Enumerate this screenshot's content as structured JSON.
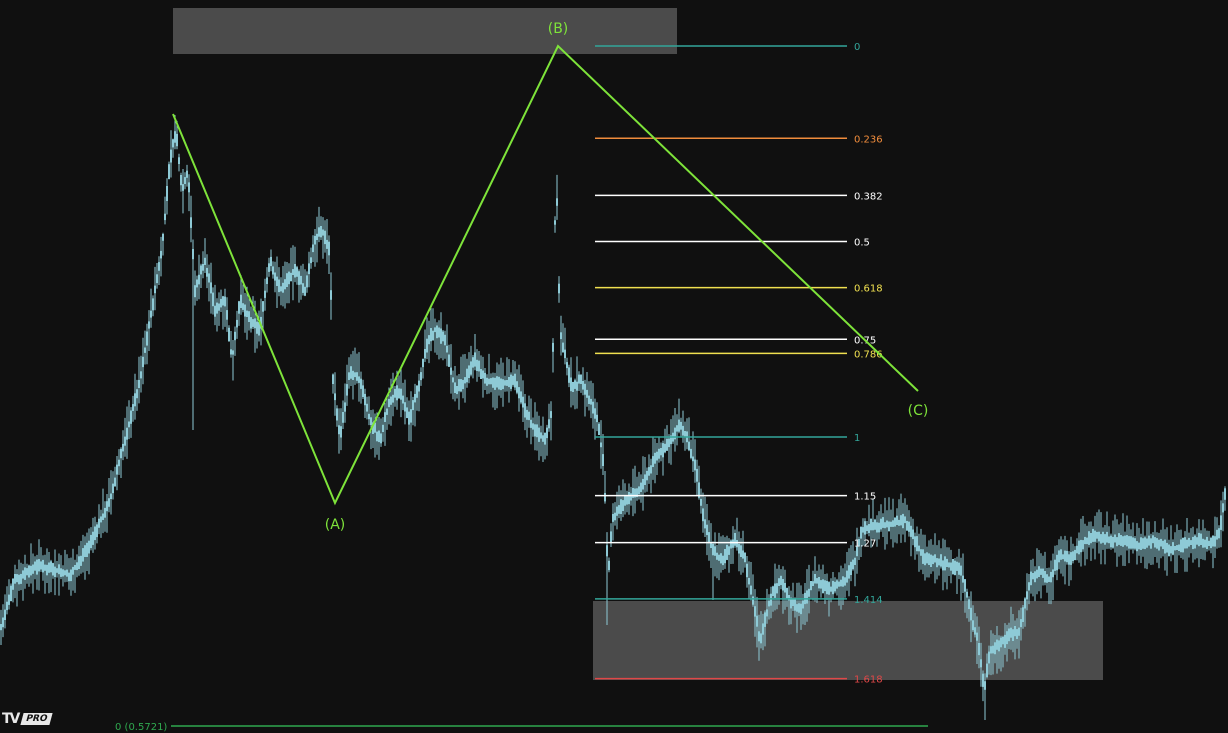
{
  "chart_data": {
    "type": "candlestick",
    "title": "",
    "colors": {
      "background": "#101010",
      "candles": "#8ecad6",
      "wave": "#7ee33a",
      "zone": "#5a5a5a"
    },
    "waves": [
      {
        "label": "(A)",
        "x": 335
      },
      {
        "label": "(B)",
        "x": 558
      },
      {
        "label": "(C)",
        "x": 918
      }
    ],
    "fib_levels": [
      {
        "level": 0,
        "label": "0",
        "color": "#33a69a"
      },
      {
        "level": 0.236,
        "label": "0.236",
        "color": "#f08c3c"
      },
      {
        "level": 0.382,
        "label": "0.382",
        "color": "#ffffff"
      },
      {
        "level": 0.5,
        "label": "0.5",
        "color": "#ffffff"
      },
      {
        "level": 0.618,
        "label": "0.618",
        "color": "#f0e050"
      },
      {
        "level": 0.75,
        "label": "0.75",
        "color": "#ffffff"
      },
      {
        "level": 0.786,
        "label": "0.786",
        "color": "#f0e050"
      },
      {
        "level": 1,
        "label": "1",
        "color": "#33a69a"
      },
      {
        "level": 1.15,
        "label": "1.15",
        "color": "#ffffff"
      },
      {
        "level": 1.27,
        "label": "1.27",
        "color": "#ffffff"
      },
      {
        "level": 1.414,
        "label": "1.414",
        "color": "#33a69a"
      },
      {
        "level": 1.618,
        "label": "1.618",
        "color": "#e04848"
      }
    ],
    "reference_line": {
      "label": "0 (0.5721)",
      "color": "#2fa84f"
    }
  },
  "logo": {
    "mark": "TV",
    "badge": "PRO"
  }
}
